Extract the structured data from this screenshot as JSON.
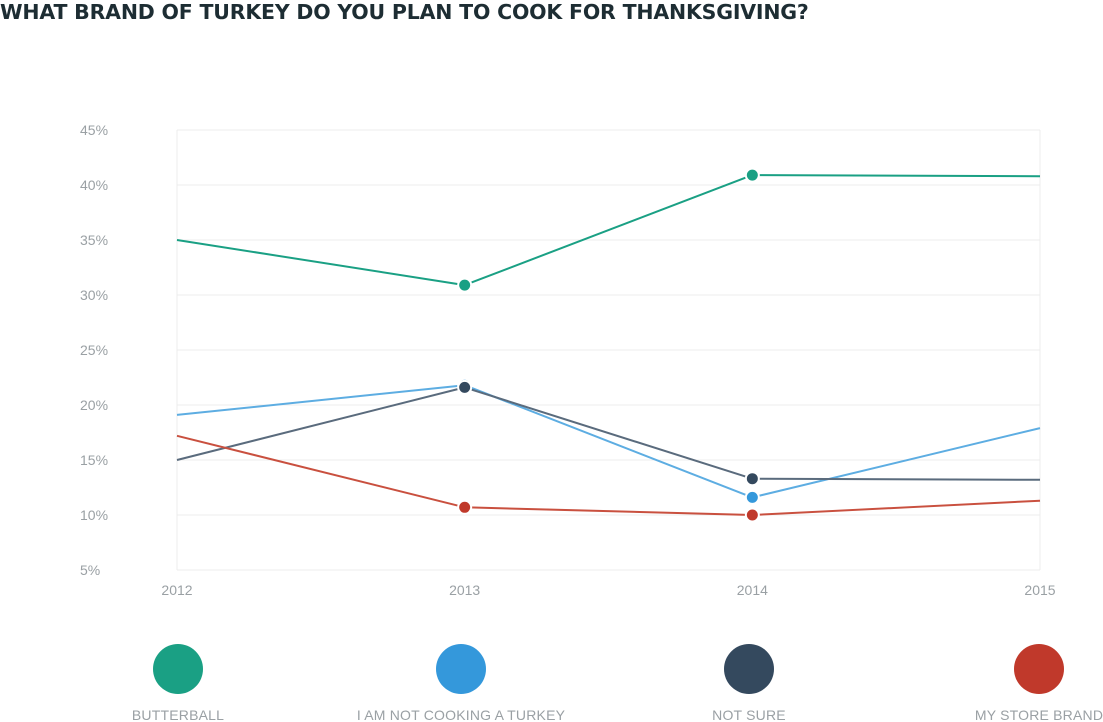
{
  "title": "WHAT BRAND OF TURKEY DO YOU PLAN TO COOK FOR THANKSGIVING?",
  "chart_data": {
    "type": "line",
    "title": "WHAT BRAND OF TURKEY DO YOU PLAN TO COOK FOR THANKSGIVING?",
    "x": [
      "2012",
      "2013",
      "2014",
      "2015"
    ],
    "ylim": [
      5,
      45
    ],
    "yticks": [
      "5%",
      "10%",
      "15%",
      "20%",
      "25%",
      "30%",
      "35%",
      "40%",
      "45%"
    ],
    "grid": true,
    "legend_position": "bottom",
    "series": [
      {
        "name": "BUTTERBALL",
        "color": "#1aa084",
        "legend_color": "#1aa084",
        "values": [
          35,
          30.9,
          40.9,
          40.8
        ]
      },
      {
        "name": "I AM NOT COOKING A TURKEY",
        "color": "#5dade2",
        "legend_color": "#3498db",
        "values": [
          19.1,
          21.8,
          11.6,
          17.9
        ]
      },
      {
        "name": "NOT SURE",
        "color": "#5a6b7d",
        "legend_color": "#34495e",
        "values": [
          15,
          21.6,
          13.3,
          13.2
        ]
      },
      {
        "name": "MY STORE BRAND",
        "color": "#c9503f",
        "legend_color": "#c0392b",
        "values": [
          17.2,
          10.7,
          10,
          11.3
        ]
      }
    ]
  }
}
